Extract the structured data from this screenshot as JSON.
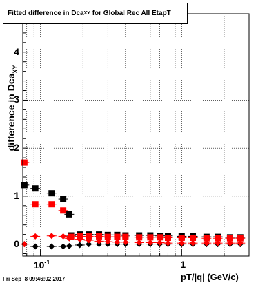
{
  "chart_data": {
    "type": "scatter",
    "title_main": "Fitted difference in Dca",
    "title_sub": "XY",
    "title_rest": " for Global Rec All EtapT",
    "ylabel_main": "difference in Dca",
    "ylabel_sub": "XY",
    "xlabel": "pT/|q| (GeV/c)",
    "x_scale": "log",
    "xlim": [
      0.075,
      3.0
    ],
    "ylim": [
      -0.25,
      4.8
    ],
    "grid": true,
    "y_ticks": [
      "0",
      "1",
      "2",
      "3",
      "4"
    ],
    "x_ticks": [
      {
        "base": "10",
        "exp": "-1"
      },
      {
        "base": "1",
        "exp": ""
      }
    ],
    "series": [
      {
        "color": "#000000",
        "marker": "square",
        "x": [
          0.077,
          0.092,
          0.12,
          0.145,
          0.16
        ],
        "y": [
          1.23,
          1.16,
          1.06,
          0.94,
          0.62
        ]
      },
      {
        "color": "#ff0000",
        "marker": "square",
        "x": [
          0.077,
          0.092,
          0.12,
          0.145
        ],
        "y": [
          1.7,
          0.83,
          0.83,
          0.7
        ]
      },
      {
        "color": "#000000",
        "marker": "diamond",
        "x": [
          0.077,
          0.092,
          0.12,
          0.145,
          0.16,
          0.19,
          0.22,
          0.26,
          0.3,
          0.35,
          0.4,
          0.5,
          0.6,
          0.7,
          0.8,
          1.0,
          1.2,
          1.5,
          1.8,
          2.2,
          2.6
        ],
        "y": [
          0.0,
          -0.05,
          -0.05,
          -0.05,
          -0.04,
          -0.02,
          0.0,
          0.0,
          0.0,
          0.0,
          0.0,
          0.0,
          0.0,
          0.0,
          0.0,
          0.0,
          0.0,
          0.0,
          0.0,
          0.0,
          0.0
        ]
      },
      {
        "color": "#ff0000",
        "marker": "diamond",
        "x": [
          0.077,
          0.092,
          0.12,
          0.145,
          0.16,
          0.19,
          0.22,
          0.26,
          0.3,
          0.35,
          0.4,
          0.5,
          0.6,
          0.7,
          0.8,
          1.0,
          1.2,
          1.5,
          1.8,
          2.2,
          2.6
        ],
        "y": [
          0.0,
          0.16,
          0.17,
          0.16,
          0.12,
          0.1,
          0.08,
          0.06,
          0.05,
          0.04,
          0.04,
          0.03,
          0.03,
          0.03,
          0.02,
          0.02,
          0.02,
          0.02,
          0.02,
          0.02,
          0.02
        ]
      },
      {
        "color": "#000000",
        "marker": "square",
        "x": [
          0.165,
          0.19,
          0.22,
          0.26,
          0.3,
          0.35,
          0.4,
          0.5,
          0.6,
          0.7,
          0.8,
          1.0,
          1.2,
          1.5,
          1.8,
          2.2,
          2.6
        ],
        "y": [
          0.18,
          0.2,
          0.2,
          0.2,
          0.19,
          0.19,
          0.18,
          0.18,
          0.18,
          0.17,
          0.17,
          0.16,
          0.16,
          0.15,
          0.15,
          0.14,
          0.14
        ]
      },
      {
        "color": "#ff0000",
        "marker": "square",
        "x": [
          0.165,
          0.19,
          0.22,
          0.26,
          0.3,
          0.35,
          0.4,
          0.5,
          0.6,
          0.7,
          0.8,
          1.0,
          1.2,
          1.5,
          1.8,
          2.2,
          2.6
        ],
        "y": [
          0.15,
          0.16,
          0.16,
          0.16,
          0.15,
          0.15,
          0.15,
          0.14,
          0.14,
          0.14,
          0.13,
          0.13,
          0.13,
          0.12,
          0.12,
          0.12,
          0.12
        ]
      }
    ]
  },
  "footer": {
    "timestamp": "Fri Sep  8 09:46:02 2017"
  }
}
